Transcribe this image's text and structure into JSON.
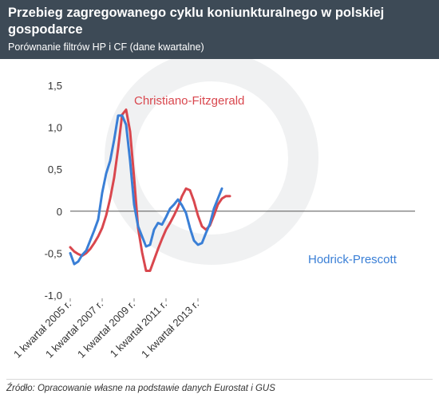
{
  "title": "Przebieg zagregowanego cyklu koniunkturalnego w polskiej gospodarce",
  "subtitle": "Porównanie filtrów HP i CF (dane kwartalne)",
  "source": "Źródło: Opracowanie własne na podstawie danych Eurostat i GUS",
  "colors": {
    "header": "#3d4a56",
    "cf": "#d9474e",
    "hp": "#3a7fd6",
    "zero": "#555555"
  },
  "chart_data": {
    "type": "line",
    "ylim": [
      -1.0,
      1.5
    ],
    "yticks": [
      "-1,0",
      "-0,5",
      "0",
      "0,5",
      "1,0",
      "1,5"
    ],
    "xlabels": [
      "1 kwartał 2005 r.",
      "1 kwartał 2007 r.",
      "1 kwartał 2009 r.",
      "1 kwartał 2011 r.",
      "1 kwartał 2013 r."
    ],
    "xlabel_index": [
      0,
      8,
      16,
      24,
      32
    ],
    "grid": false,
    "series": [
      {
        "name": "Christiano-Fitzgerald",
        "values": [
          -0.43,
          -0.48,
          -0.51,
          -0.53,
          -0.5,
          -0.45,
          -0.38,
          -0.3,
          -0.2,
          -0.05,
          0.15,
          0.4,
          0.75,
          1.15,
          1.21,
          0.95,
          0.4,
          -0.2,
          -0.49,
          -0.71,
          -0.71,
          -0.58,
          -0.45,
          -0.33,
          -0.22,
          -0.14,
          -0.05,
          0.05,
          0.18,
          0.27,
          0.25,
          0.12,
          -0.05,
          -0.18,
          -0.22,
          -0.17,
          -0.05,
          0.08,
          0.15,
          0.18,
          0.18
        ]
      },
      {
        "name": "Hodrick-Prescott",
        "values": [
          -0.5,
          -0.63,
          -0.6,
          -0.52,
          -0.47,
          -0.35,
          -0.23,
          -0.1,
          0.22,
          0.45,
          0.6,
          0.85,
          1.14,
          1.14,
          1.03,
          0.6,
          0.08,
          -0.18,
          -0.3,
          -0.42,
          -0.4,
          -0.22,
          -0.14,
          -0.16,
          -0.07,
          0.03,
          0.08,
          0.14,
          0.07,
          -0.02,
          -0.2,
          -0.35,
          -0.4,
          -0.38,
          -0.26,
          -0.15,
          0.03,
          0.15,
          0.27
        ]
      }
    ]
  }
}
